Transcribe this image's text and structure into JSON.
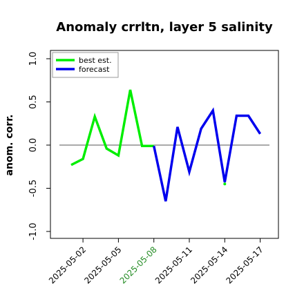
{
  "chart_data": {
    "type": "line",
    "title": "Anomaly crrltn, layer 5 salinity",
    "ylabel": "anom. corr.",
    "xlabel": "",
    "ylim": [
      -1.0,
      1.0
    ],
    "y_ticks": [
      "-1.0",
      "-0.5",
      "0.0",
      "0.5",
      "1.0"
    ],
    "x": [
      "2025-05-01",
      "2025-05-02",
      "2025-05-03",
      "2025-05-04",
      "2025-05-05",
      "2025-05-06",
      "2025-05-07",
      "2025-05-08",
      "2025-05-09",
      "2025-05-10",
      "2025-05-11",
      "2025-05-12",
      "2025-05-13",
      "2025-05-14",
      "2025-05-15",
      "2025-05-16",
      "2025-05-17"
    ],
    "x_ticks": [
      "2025-05-02",
      "2025-05-05",
      "2025-05-08",
      "2025-05-11",
      "2025-05-14",
      "2025-05-17"
    ],
    "highlight_tick": "2025-05-08",
    "highlight_color": "#228b22",
    "zero_line": true,
    "grid": false,
    "legend_position": "top-left",
    "series": [
      {
        "name": "best est.",
        "color": "#00ee00",
        "values": [
          -0.23,
          -0.16,
          0.33,
          -0.04,
          -0.12,
          0.64,
          -0.01,
          -0.01,
          null,
          null,
          null,
          null,
          null,
          -0.45,
          null,
          null,
          null
        ]
      },
      {
        "name": "forecast",
        "color": "#0000ee",
        "values": [
          null,
          null,
          null,
          null,
          null,
          null,
          null,
          -0.01,
          -0.65,
          0.21,
          -0.31,
          0.19,
          0.4,
          -0.43,
          0.34,
          0.34,
          0.13
        ]
      }
    ]
  }
}
